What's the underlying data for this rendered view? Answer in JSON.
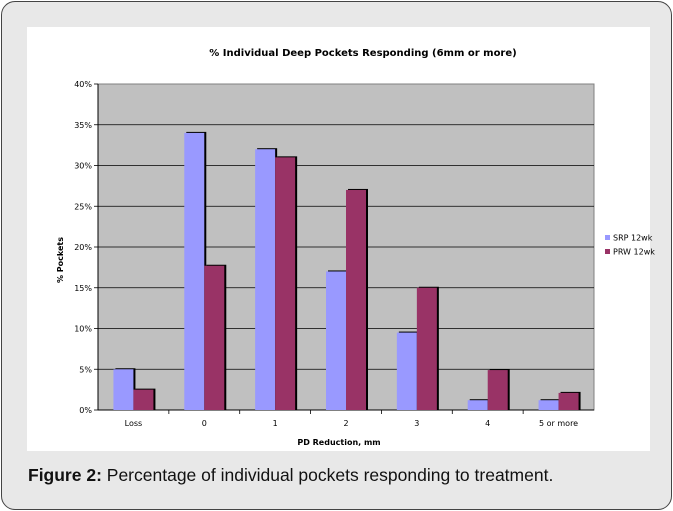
{
  "caption": {
    "label": "Figure 2:",
    "text": "Percentage of individual pockets responding to treatment."
  },
  "chart_data": {
    "type": "bar",
    "title": "% Individual Deep Pockets Responding (6mm or more)",
    "xlabel": "PD Reduction, mm",
    "ylabel": "% Pockets",
    "categories": [
      "Loss",
      "0",
      "1",
      "2",
      "3",
      "4",
      "5 or more"
    ],
    "series": [
      {
        "name": "SRP 12wk",
        "color": "#9999ff",
        "values": [
          5,
          34,
          32,
          17,
          9.5,
          1.2,
          1.2
        ]
      },
      {
        "name": "PRW 12wk",
        "color": "#993366",
        "values": [
          2.5,
          17.7,
          31,
          27,
          15,
          4.9,
          2.1
        ]
      }
    ],
    "ylim": [
      0,
      40
    ],
    "yticks": [
      "0%",
      "5%",
      "10%",
      "15%",
      "20%",
      "25%",
      "30%",
      "35%",
      "40%"
    ],
    "grid": true,
    "plot_background": "#c0c0c0",
    "legend": "right"
  }
}
